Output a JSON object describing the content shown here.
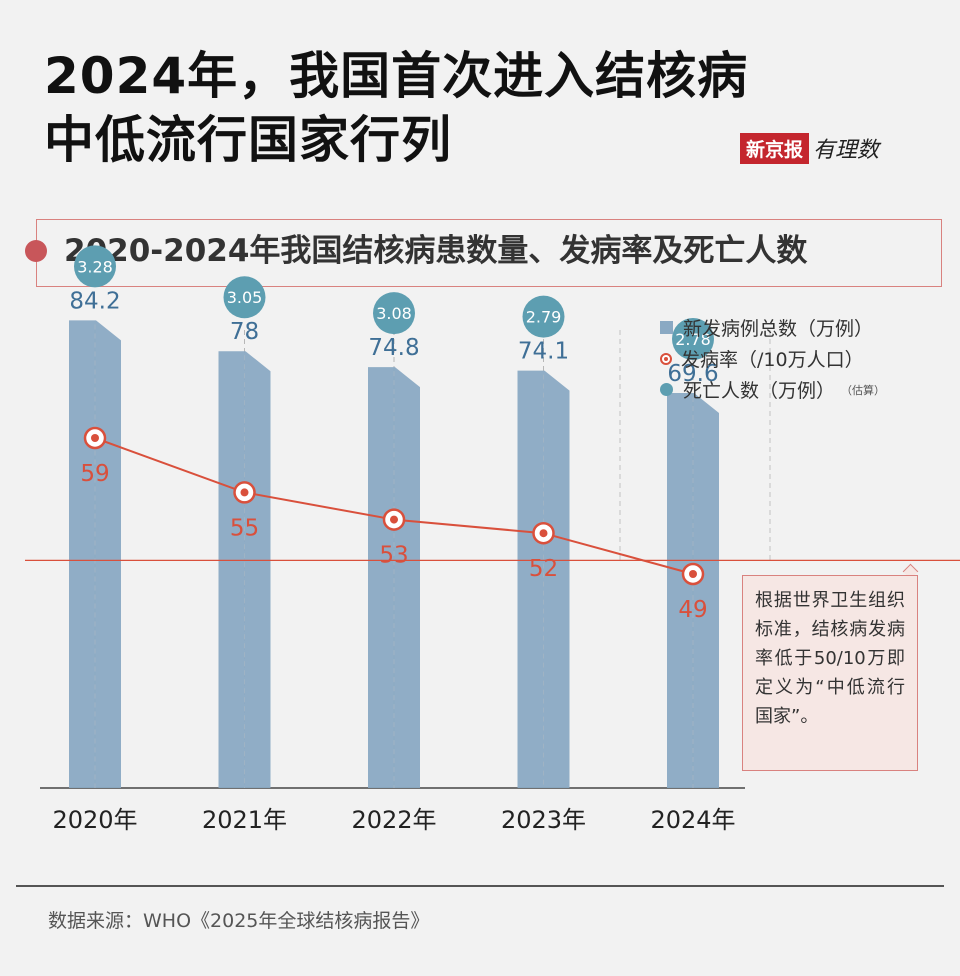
{
  "header": {
    "title_line1": "2024年，我国首次进入结核病",
    "title_line2": "中低流行国家行列",
    "brand_box": "新京报",
    "brand_script": "有理数"
  },
  "chart_data": {
    "type": "bar",
    "title": "2020-2024年我国结核病患数量、发病率及死亡人数",
    "categories": [
      "2020年",
      "2021年",
      "2022年",
      "2023年",
      "2024年"
    ],
    "series": [
      {
        "name": "新发病例总数（万例）",
        "type": "bar",
        "values": [
          84.2,
          78,
          74.8,
          74.1,
          69.6
        ],
        "color": "#8aa9c3",
        "label_color": "#3f6f96"
      },
      {
        "name": "发病率（/10万人口）",
        "type": "line",
        "values": [
          59,
          55,
          53,
          52,
          49
        ],
        "color": "#d9503c"
      },
      {
        "name": "死亡人数（万例）",
        "type": "bubble",
        "values": [
          3.28,
          3.05,
          3.08,
          2.79,
          2.78
        ],
        "color": "#5d9eb1"
      }
    ],
    "legend": [
      {
        "label": "新发病例总数（万例）",
        "note": ""
      },
      {
        "label": "发病率（/10万人口）",
        "note": ""
      },
      {
        "label": "死亡人数（万例）",
        "note": "（估算）"
      }
    ],
    "threshold": {
      "value": 50,
      "color": "#d9503c",
      "annotation": "根据世界卫生组织标准，结核病发病率低于50/10万即定义为“中低流行国家”。"
    },
    "legend_position": "top-right",
    "grid": false
  },
  "footer": {
    "source": "数据来源：WHO《2025年全球结核病报告》"
  }
}
